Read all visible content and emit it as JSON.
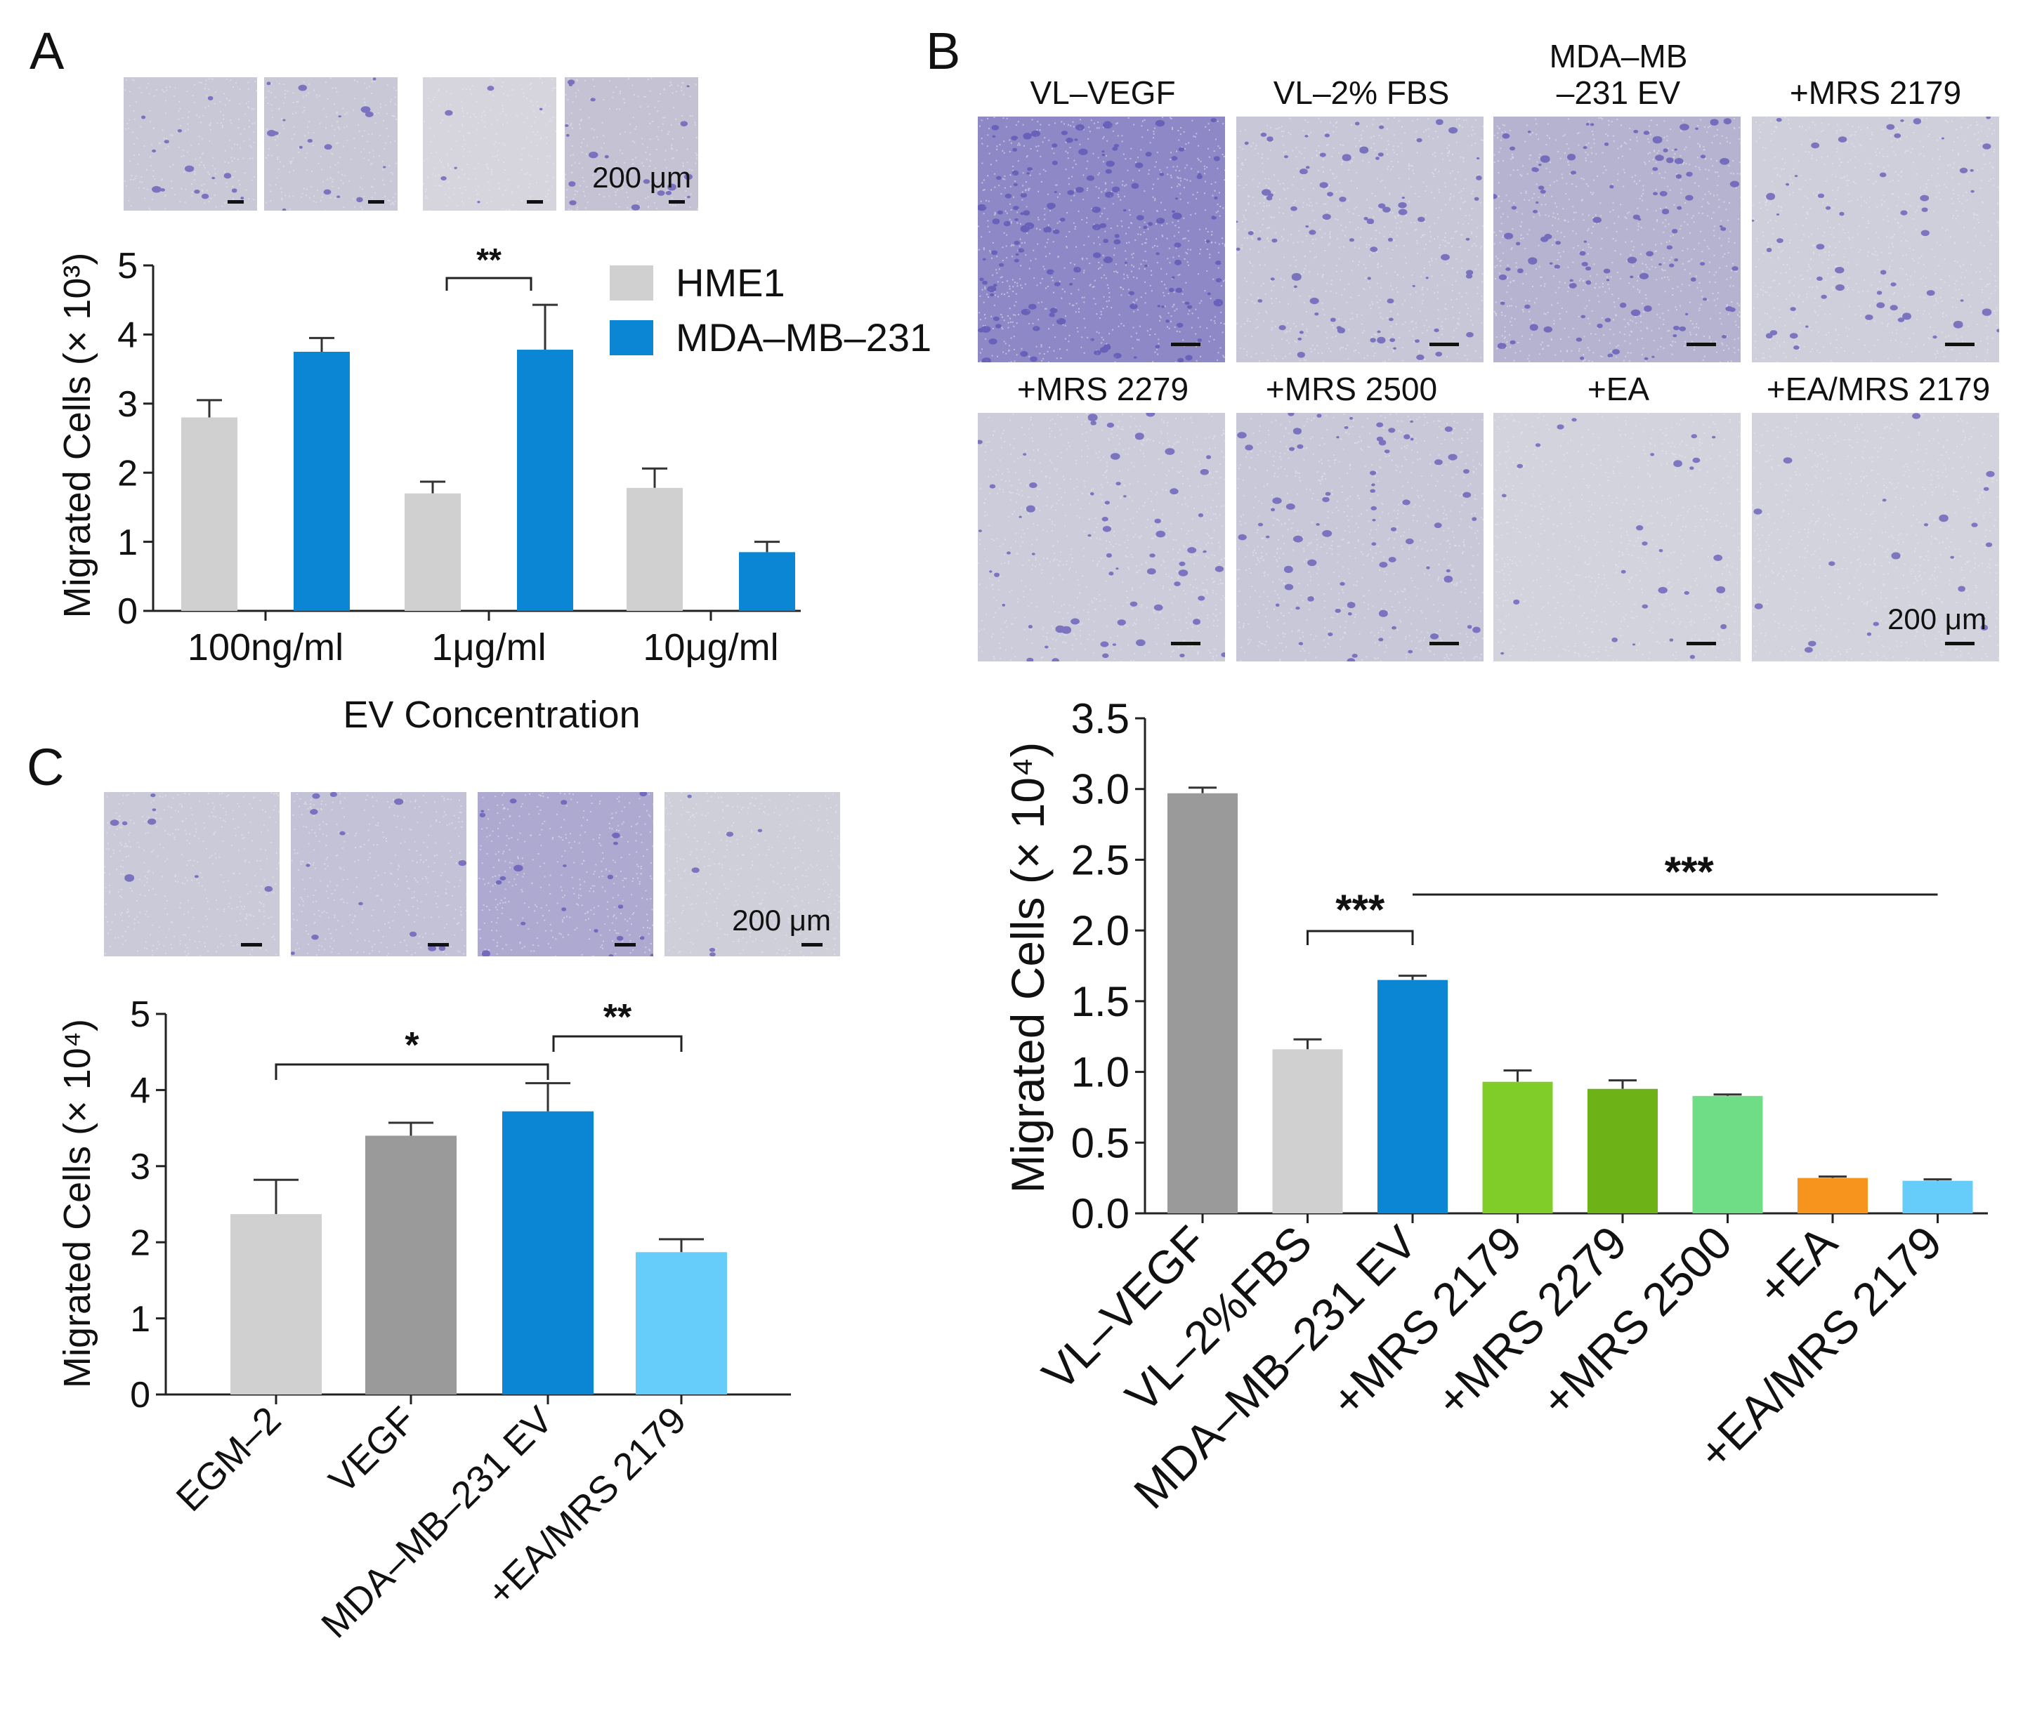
{
  "panels": {
    "A": {
      "letter": "A",
      "micro_images": [
        {
          "shade": "#c9c8d6",
          "density": 0.55,
          "scale_label": ""
        },
        {
          "shade": "#c9c8d6",
          "density": 0.65,
          "scale_label": ""
        },
        {
          "shade": "#d6d5de",
          "density": 0.25,
          "scale_label": ""
        },
        {
          "shade": "#c5c3d3",
          "density": 0.7,
          "scale_label": "200 μm"
        }
      ]
    },
    "B": {
      "letter": "B",
      "micro_images": [
        {
          "title": "VL–VEGF",
          "shade": "#8e89c6",
          "density": 1.6,
          "scale_label": ""
        },
        {
          "title": "VL–2% FBS",
          "shade": "#c8c7d8",
          "density": 0.9,
          "scale_label": ""
        },
        {
          "title": "MDA–MB\n–231 EV",
          "shade": "#b6b3d0",
          "density": 1.2,
          "scale_label": ""
        },
        {
          "title": "+MRS 2179",
          "shade": "#cfcedb",
          "density": 0.6,
          "scale_label": ""
        },
        {
          "title": "+MRS 2279",
          "shade": "#cdccda",
          "density": 0.7,
          "scale_label": ""
        },
        {
          "title": "+MRS 2500",
          "shade": "#c9c8d8",
          "density": 0.8,
          "scale_label": ""
        },
        {
          "title": "+EA",
          "shade": "#d3d3dd",
          "density": 0.3,
          "scale_label": ""
        },
        {
          "title": "+EA/MRS 2179",
          "shade": "#d3d3dd",
          "density": 0.25,
          "scale_label": "200 μm"
        }
      ]
    },
    "C": {
      "letter": "C",
      "micro_images": [
        {
          "shade": "#cbcad8",
          "density": 0.2,
          "scale_label": ""
        },
        {
          "shade": "#c4c2d6",
          "density": 0.3,
          "scale_label": ""
        },
        {
          "shade": "#aea9d0",
          "density": 0.5,
          "scale_label": ""
        },
        {
          "shade": "#cfcfd9",
          "density": 0.15,
          "scale_label": "200 μm"
        }
      ]
    }
  },
  "chart_data": [
    {
      "panel": "A",
      "type": "bar",
      "categories": [
        "100ng/ml",
        "1μg/ml",
        "10μg/ml"
      ],
      "series": [
        {
          "name": "HME1",
          "color": "#d0d0d0",
          "values": [
            2.8,
            1.7,
            1.78
          ],
          "errors": [
            0.25,
            0.17,
            0.28
          ]
        },
        {
          "name": "MDA–MB–231",
          "color": "#0a86d4",
          "values": [
            3.75,
            3.78,
            0.85
          ],
          "errors": [
            0.2,
            0.65,
            0.15
          ]
        }
      ],
      "ylabel": "Migrated Cells (× 10³)",
      "xlabel": "EV Concentration",
      "ylim": [
        0,
        5
      ],
      "yticks": [
        "0",
        "1",
        "2",
        "3",
        "4",
        "5"
      ],
      "legend_position": "top-right",
      "significance": [
        {
          "label": "**",
          "category": "1μg/ml"
        }
      ]
    },
    {
      "panel": "B",
      "type": "bar",
      "categories": [
        "VL–VEGF",
        "VL–2%FBS",
        "MDA–MB–231 EV",
        "+MRS 2179",
        "+MRS 2279",
        "+MRS 2500",
        "+EA",
        "+EA/MRS 2179"
      ],
      "values": [
        2.97,
        1.16,
        1.65,
        0.93,
        0.88,
        0.83,
        0.25,
        0.23
      ],
      "errors": [
        0.04,
        0.07,
        0.03,
        0.08,
        0.06,
        0.01,
        0.01,
        0.01
      ],
      "colors": [
        "#9a9a9a",
        "#d0d0d0",
        "#0a86d4",
        "#80cc28",
        "#6db217",
        "#6fdc86",
        "#f7941d",
        "#66ccfa"
      ],
      "ylabel": "Migrated Cells (× 10⁴)",
      "ylim": [
        0,
        3.5
      ],
      "yticks": [
        "0.0",
        "0.5",
        "1.0",
        "1.5",
        "2.0",
        "2.5",
        "3.0",
        "3.5"
      ],
      "significance": [
        {
          "label": "***",
          "from": "VL–2%FBS",
          "to": "MDA–MB–231 EV"
        },
        {
          "label": "***",
          "from": "MDA–MB–231 EV",
          "to": "+EA/MRS 2179"
        }
      ]
    },
    {
      "panel": "C",
      "type": "bar",
      "categories": [
        "EGM–2",
        "VEGF",
        "MDA–MB–231 EV",
        "+EA/MRS 2179"
      ],
      "values": [
        2.37,
        3.4,
        3.72,
        1.87
      ],
      "errors": [
        0.45,
        0.17,
        0.37,
        0.17
      ],
      "colors": [
        "#d0d0d0",
        "#9a9a9a",
        "#0a86d4",
        "#66ccfa"
      ],
      "ylabel": "Migrated Cells (× 10⁴)",
      "ylim": [
        0,
        5
      ],
      "yticks": [
        "0",
        "1",
        "2",
        "3",
        "4",
        "5"
      ],
      "significance": [
        {
          "label": "*",
          "from": "EGM–2",
          "to": "MDA–MB–231 EV"
        },
        {
          "label": "**",
          "from": "MDA–MB–231 EV",
          "to": "+EA/MRS 2179"
        }
      ]
    }
  ]
}
